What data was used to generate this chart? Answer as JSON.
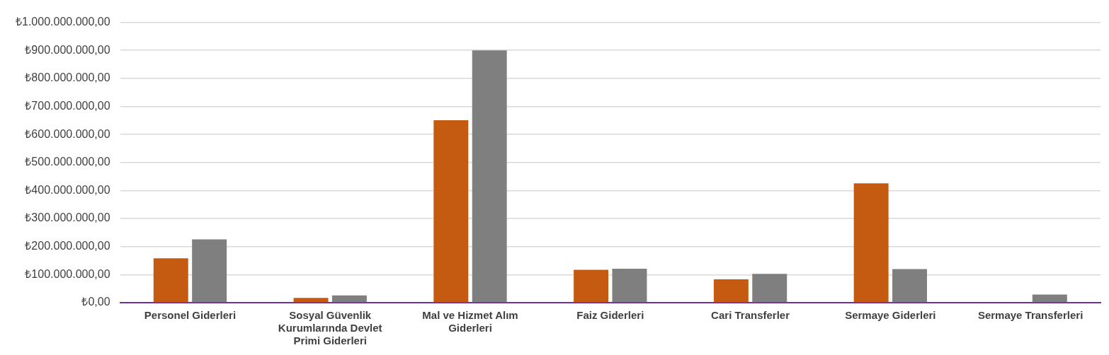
{
  "chart_data": {
    "type": "bar",
    "categories": [
      "Personel Giderleri",
      "Sosyal Güvenlik Kurumlarında Devlet Primi Giderleri",
      "Mal ve Hizmet Alım Giderleri",
      "Faiz Giderleri",
      "Cari Transferler",
      "Sermaye Giderleri",
      "Sermaye Transferleri"
    ],
    "series": [
      {
        "color": "#c55a11",
        "values": [
          158000000,
          17000000,
          651000000,
          117000000,
          83000000,
          426000000,
          null
        ]
      },
      {
        "color": "#7f7f7f",
        "values": [
          226000000,
          26000000,
          900000000,
          121000000,
          103000000,
          120000000,
          29000000
        ]
      }
    ],
    "ylim": [
      0,
      1000000000
    ],
    "yticks": [
      {
        "value": 0,
        "label": "₺0,00"
      },
      {
        "value": 100000000,
        "label": "₺100.000.000,00"
      },
      {
        "value": 200000000,
        "label": "₺200.000.000,00"
      },
      {
        "value": 300000000,
        "label": "₺300.000.000,00"
      },
      {
        "value": 400000000,
        "label": "₺400.000.000,00"
      },
      {
        "value": 500000000,
        "label": "₺500.000.000,00"
      },
      {
        "value": 600000000,
        "label": "₺600.000.000,00"
      },
      {
        "value": 700000000,
        "label": "₺700.000.000,00"
      },
      {
        "value": 800000000,
        "label": "₺800.000.000,00"
      },
      {
        "value": 900000000,
        "label": "₺900.000.000,00"
      },
      {
        "value": 1000000000,
        "label": "₺1.000.000.000,00"
      }
    ],
    "grid": "y",
    "legend": false
  }
}
